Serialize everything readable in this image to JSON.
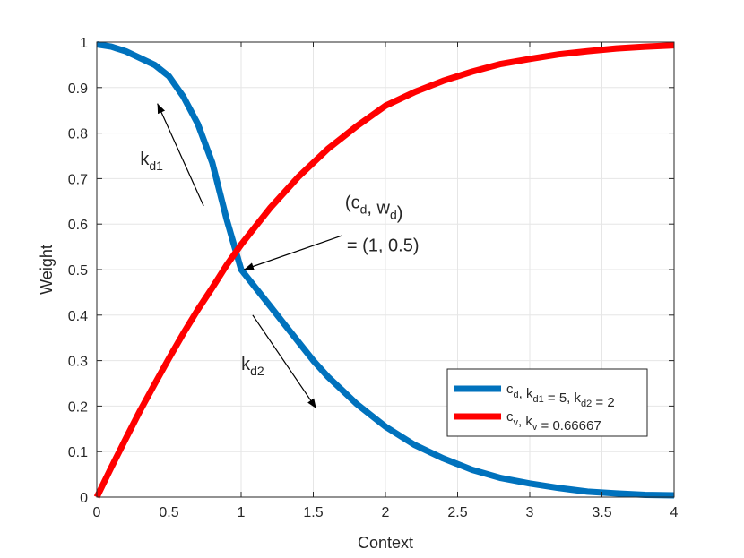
{
  "chart_data": {
    "type": "line",
    "xlabel": "Context",
    "ylabel": "Weight",
    "xlim": [
      0,
      4
    ],
    "ylim": [
      0,
      1
    ],
    "grid": true,
    "legend_position": "inside-lower-right",
    "x_ticks": [
      "0",
      "0.5",
      "1",
      "1.5",
      "2",
      "2.5",
      "3",
      "3.5",
      "4"
    ],
    "y_ticks": [
      "0",
      "0.1",
      "0.2",
      "0.3",
      "0.4",
      "0.5",
      "0.6",
      "0.7",
      "0.8",
      "0.9",
      "1"
    ],
    "series": [
      {
        "legend_parts": [
          {
            "t": "c",
            "sub": false
          },
          {
            "t": "d",
            "sub": true
          },
          {
            "t": ", k",
            "sub": false
          },
          {
            "t": "d1",
            "sub": true
          },
          {
            "t": " = 5, k",
            "sub": false
          },
          {
            "t": "d2",
            "sub": true
          },
          {
            "t": " = 2",
            "sub": false
          }
        ],
        "color": "#0072BD",
        "points": [
          [
            0,
            0.995
          ],
          [
            0.1,
            0.99
          ],
          [
            0.2,
            0.98
          ],
          [
            0.3,
            0.965
          ],
          [
            0.4,
            0.95
          ],
          [
            0.5,
            0.925
          ],
          [
            0.6,
            0.88
          ],
          [
            0.7,
            0.82
          ],
          [
            0.8,
            0.735
          ],
          [
            0.9,
            0.61
          ],
          [
            1.0,
            0.5
          ],
          [
            1.1,
            0.46
          ],
          [
            1.2,
            0.42
          ],
          [
            1.3,
            0.38
          ],
          [
            1.4,
            0.34
          ],
          [
            1.5,
            0.3
          ],
          [
            1.6,
            0.265
          ],
          [
            1.7,
            0.235
          ],
          [
            1.8,
            0.205
          ],
          [
            1.9,
            0.18
          ],
          [
            2.0,
            0.155
          ],
          [
            2.2,
            0.115
          ],
          [
            2.4,
            0.085
          ],
          [
            2.6,
            0.06
          ],
          [
            2.8,
            0.042
          ],
          [
            3.0,
            0.03
          ],
          [
            3.2,
            0.02
          ],
          [
            3.4,
            0.012
          ],
          [
            3.6,
            0.008
          ],
          [
            3.8,
            0.005
          ],
          [
            4.0,
            0.004
          ]
        ]
      },
      {
        "legend_parts": [
          {
            "t": "c",
            "sub": false
          },
          {
            "t": "v",
            "sub": true
          },
          {
            "t": ", k",
            "sub": false
          },
          {
            "t": "v",
            "sub": true
          },
          {
            "t": " = 0.66667",
            "sub": false
          }
        ],
        "color": "#FF0000",
        "points": [
          [
            0,
            0.0
          ],
          [
            0.1,
            0.065
          ],
          [
            0.2,
            0.128
          ],
          [
            0.3,
            0.19
          ],
          [
            0.4,
            0.248
          ],
          [
            0.5,
            0.305
          ],
          [
            0.6,
            0.36
          ],
          [
            0.7,
            0.412
          ],
          [
            0.8,
            0.46
          ],
          [
            0.9,
            0.51
          ],
          [
            1.0,
            0.555
          ],
          [
            1.2,
            0.635
          ],
          [
            1.4,
            0.705
          ],
          [
            1.6,
            0.765
          ],
          [
            1.8,
            0.815
          ],
          [
            2.0,
            0.86
          ],
          [
            2.2,
            0.89
          ],
          [
            2.4,
            0.915
          ],
          [
            2.6,
            0.935
          ],
          [
            2.8,
            0.952
          ],
          [
            3.0,
            0.963
          ],
          [
            3.2,
            0.973
          ],
          [
            3.4,
            0.98
          ],
          [
            3.6,
            0.986
          ],
          [
            3.8,
            0.99
          ],
          [
            4.0,
            0.993
          ]
        ]
      }
    ],
    "annotations": [
      {
        "name": "annotation-kd1",
        "label_parts": [
          {
            "t": "k",
            "sub": false
          },
          {
            "t": "d1",
            "sub": true
          }
        ],
        "label_at": [
          0.38,
          0.73
        ],
        "arrow_from": [
          0.74,
          0.64
        ],
        "arrow_to": [
          0.42,
          0.865
        ]
      },
      {
        "name": "annotation-kd2",
        "label_parts": [
          {
            "t": "k",
            "sub": false
          },
          {
            "t": "d2",
            "sub": true
          }
        ],
        "label_at": [
          1.08,
          0.28
        ],
        "arrow_from": [
          1.08,
          0.4
        ],
        "arrow_to": [
          1.52,
          0.195
        ]
      },
      {
        "name": "annotation-point",
        "label_lines": [
          [
            {
              "t": "(c",
              "sub": false
            },
            {
              "t": "d",
              "sub": true
            },
            {
              "t": ", w",
              "sub": false
            },
            {
              "t": "d",
              "sub": true
            },
            {
              "t": ")",
              "sub": false
            }
          ],
          [
            {
              "t": "= (1, 0.5)",
              "sub": false
            }
          ]
        ],
        "label_at": [
          1.72,
          0.58
        ],
        "arrow_from": [
          1.7,
          0.575
        ],
        "arrow_to": [
          1.02,
          0.5
        ]
      }
    ]
  }
}
